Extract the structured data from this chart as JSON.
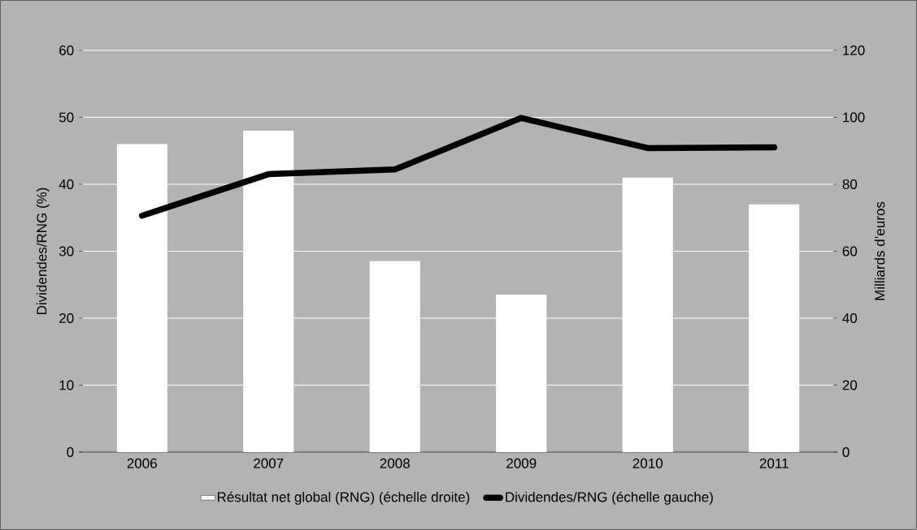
{
  "chart_data": {
    "type": "bar",
    "categories": [
      "2006",
      "2007",
      "2008",
      "2009",
      "2010",
      "2011"
    ],
    "series": [
      {
        "name": "Résultat net global (RNG) (échelle droite)",
        "axis": "y2",
        "color": "#ffffff",
        "values": [
          92,
          96,
          57,
          47,
          82,
          74
        ]
      },
      {
        "name": "Dividendes/RNG (échelle gauche)",
        "type": "line",
        "axis": "y",
        "color": "#000000",
        "values": [
          35.3,
          41.5,
          42.2,
          49.9,
          45.4,
          45.5
        ]
      }
    ],
    "ylabel": "Dividendes/RNG (%)",
    "y2label": "Milliards d’euros",
    "ylim": [
      0,
      60
    ],
    "yticks": [
      0,
      10,
      20,
      30,
      40,
      50,
      60
    ],
    "y2lim": [
      0,
      120
    ],
    "y2ticks": [
      0,
      20,
      40,
      60,
      80,
      100,
      120
    ],
    "grid": "y",
    "legend": "bottom",
    "marker": "none",
    "line_style": "solid"
  }
}
